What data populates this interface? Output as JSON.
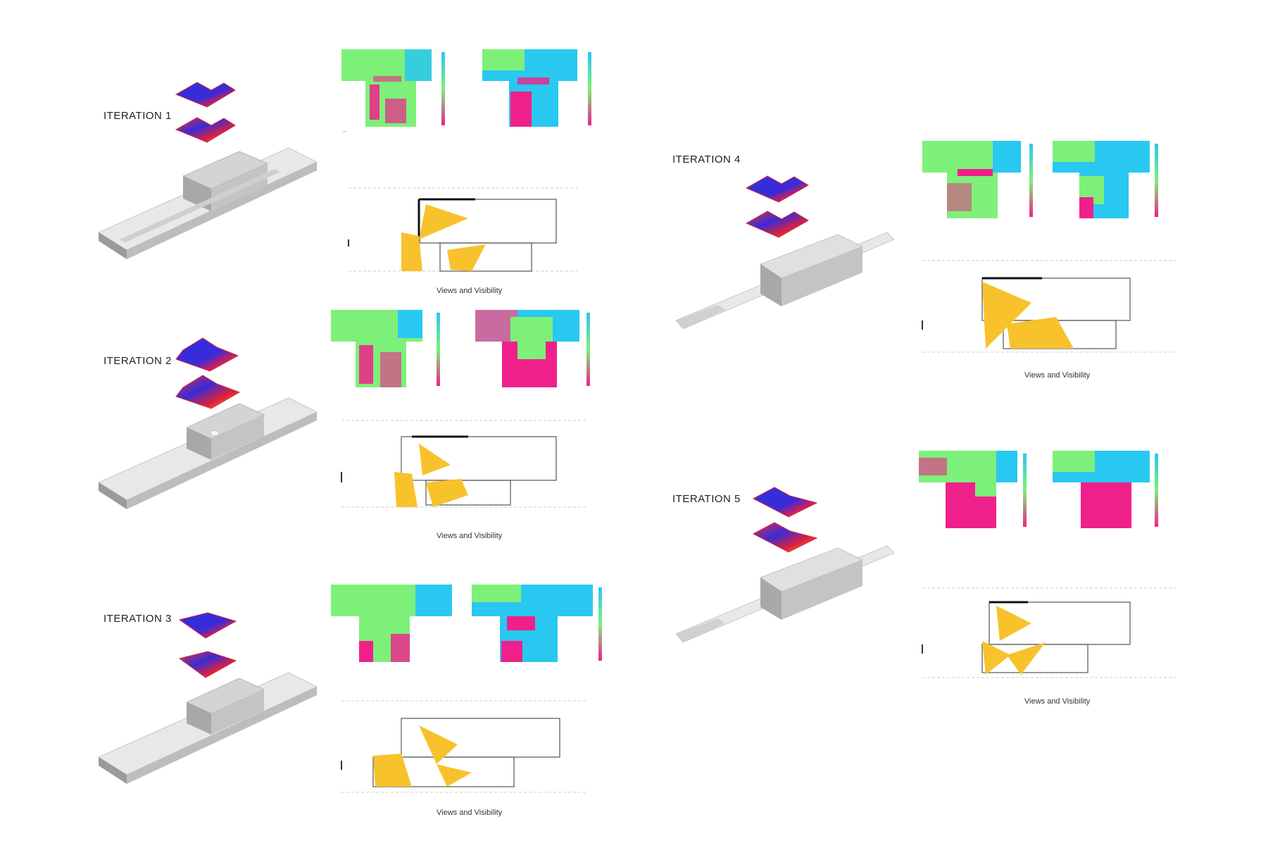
{
  "iterations": [
    {
      "title": "ITERATION 1",
      "caption": "Views and Visibility"
    },
    {
      "title": "ITERATION 2",
      "caption": "Views and Visibility"
    },
    {
      "title": "ITERATION 3",
      "caption": "Views and Visibility"
    },
    {
      "title": "ITERATION 4",
      "caption": "Views and Visibility"
    },
    {
      "title": "ITERATION 5",
      "caption": "Views and Visibility"
    }
  ],
  "colors": {
    "heat_blue": "#3a2bd6",
    "heat_red": "#e0213a",
    "heat_orange": "#f5a623",
    "map_green": "#7df07a",
    "map_cyan": "#29c8f0",
    "map_magenta": "#f0208a",
    "view_yellow": "#f8c22c",
    "massing_gray": "#d8d8d8"
  },
  "icons": [
    "solar-heatmap-icon",
    "analysis-map-icon",
    "floorplan-icon",
    "massing-model-icon"
  ]
}
